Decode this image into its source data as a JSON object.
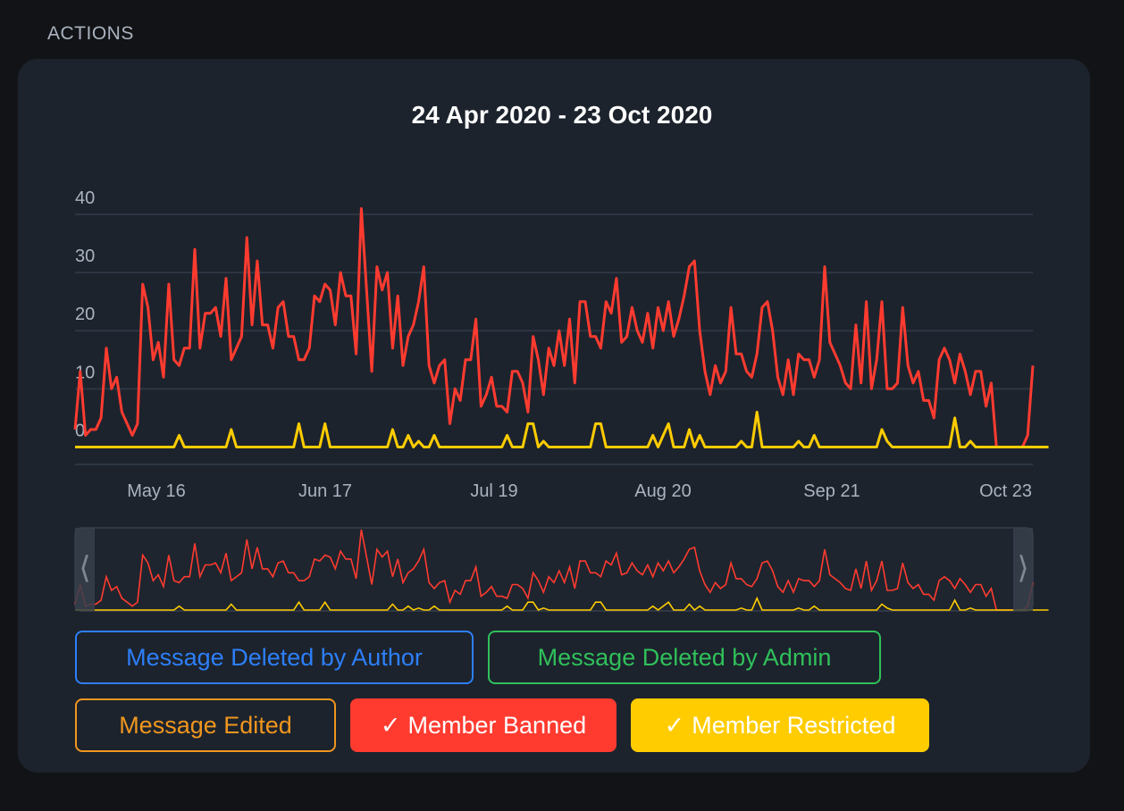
{
  "section_label": "ACTIONS",
  "chart_data": {
    "type": "line",
    "title": "24 Apr 2020 - 23 Oct 2020",
    "x_tick_labels": [
      "May 16",
      "Jun 17",
      "Jul 19",
      "Aug 20",
      "Sep 21",
      "Oct 23"
    ],
    "y_ticks": [
      0,
      10,
      20,
      30,
      40
    ],
    "ylim": [
      -3,
      40
    ],
    "grid": true,
    "series": [
      {
        "name": "Member Banned",
        "color": "#ff3b30",
        "values": [
          3,
          13,
          2,
          3,
          3,
          5,
          17,
          10,
          12,
          6,
          4,
          2,
          4,
          28,
          24,
          15,
          18,
          12,
          28,
          15,
          14,
          17,
          17,
          34,
          17,
          23,
          23,
          24,
          19,
          29,
          15,
          17,
          19,
          36,
          21,
          32,
          21,
          21,
          17,
          24,
          25,
          19,
          19,
          15,
          15,
          17,
          26,
          25,
          28,
          27,
          21,
          30,
          26,
          26,
          16,
          41,
          27,
          13,
          31,
          27,
          30,
          17,
          26,
          14,
          19,
          21,
          25,
          31,
          14,
          11,
          14,
          15,
          4,
          10,
          8,
          15,
          15,
          22,
          7,
          9,
          12,
          7,
          7,
          6,
          13,
          13,
          11,
          6,
          19,
          15,
          9,
          17,
          14,
          20,
          14,
          22,
          11,
          25,
          25,
          19,
          19,
          17,
          25,
          23,
          29,
          18,
          19,
          24,
          20,
          18,
          23,
          17,
          24,
          20,
          25,
          19,
          22,
          26,
          31,
          32,
          20,
          13,
          9,
          14,
          11,
          13,
          24,
          16,
          16,
          13,
          12,
          16,
          24,
          25,
          20,
          12,
          9,
          15,
          9,
          16,
          15,
          15,
          12,
          15,
          31,
          18,
          16,
          14,
          11,
          10,
          21,
          11,
          25,
          10,
          15,
          25,
          10,
          10,
          11,
          24,
          14,
          11,
          13,
          8,
          8,
          5,
          15,
          17,
          15,
          11,
          16,
          13,
          9,
          13,
          13,
          7,
          11,
          0,
          0,
          0,
          0,
          0,
          0,
          2,
          14
        ]
      },
      {
        "name": "Member Restricted",
        "color": "#ffcc00",
        "values": [
          0,
          0,
          0,
          0,
          0,
          0,
          0,
          0,
          0,
          0,
          0,
          0,
          0,
          0,
          0,
          0,
          0,
          0,
          0,
          0,
          2,
          0,
          0,
          0,
          0,
          0,
          0,
          0,
          0,
          0,
          3,
          0,
          0,
          0,
          0,
          0,
          0,
          0,
          0,
          0,
          0,
          0,
          0,
          4,
          0,
          0,
          0,
          0,
          4,
          0,
          0,
          0,
          0,
          0,
          0,
          0,
          0,
          0,
          0,
          0,
          0,
          3,
          0,
          0,
          2,
          0,
          1,
          0,
          0,
          2,
          0,
          0,
          0,
          0,
          0,
          0,
          0,
          0,
          0,
          0,
          0,
          0,
          0,
          2,
          0,
          0,
          0,
          4,
          4,
          0,
          1,
          0,
          0,
          0,
          0,
          0,
          0,
          0,
          0,
          0,
          4,
          4,
          0,
          0,
          0,
          0,
          0,
          0,
          0,
          0,
          0,
          2,
          0,
          2,
          4,
          0,
          0,
          0,
          3,
          0,
          2,
          0,
          0,
          0,
          0,
          0,
          0,
          0,
          1,
          0,
          0,
          6,
          0,
          0,
          0,
          0,
          0,
          0,
          0,
          1,
          0,
          0,
          2,
          0,
          0,
          0,
          0,
          0,
          0,
          0,
          0,
          0,
          0,
          0,
          0,
          3,
          1,
          0,
          0,
          0,
          0,
          0,
          0,
          0,
          0,
          0,
          0,
          0,
          0,
          5,
          0,
          0,
          1,
          0,
          0,
          0,
          0,
          0,
          0,
          0,
          0,
          0,
          0,
          0,
          0,
          0,
          0,
          0
        ]
      }
    ]
  },
  "legend_buttons": [
    {
      "label": "Message Deleted by Author",
      "color": "#2d7ff9",
      "active": false,
      "check": ""
    },
    {
      "label": "Message Deleted by Admin",
      "color": "#30c05a",
      "active": false,
      "check": ""
    },
    {
      "label": "Message Edited",
      "color": "#f0961e",
      "active": false,
      "check": ""
    },
    {
      "label": "Member Banned",
      "color": "#ff3b30",
      "active": true,
      "check": "✓"
    },
    {
      "label": "Member Restricted",
      "color": "#ffcc00",
      "active": true,
      "check": "✓"
    }
  ],
  "navigator": {
    "left_handle_icon": "chevron-left-icon",
    "right_handle_icon": "chevron-right-icon"
  }
}
